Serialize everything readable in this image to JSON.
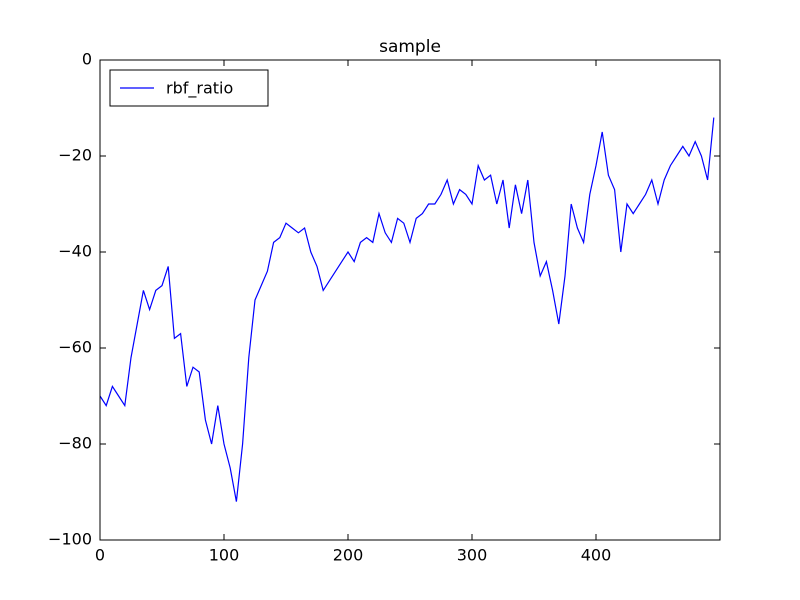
{
  "chart_data": {
    "type": "line",
    "title": "sample",
    "x": [
      0,
      5,
      10,
      15,
      20,
      25,
      30,
      35,
      40,
      45,
      50,
      55,
      60,
      65,
      70,
      75,
      80,
      85,
      90,
      95,
      100,
      105,
      110,
      115,
      120,
      125,
      130,
      135,
      140,
      145,
      150,
      155,
      160,
      165,
      170,
      175,
      180,
      185,
      190,
      195,
      200,
      205,
      210,
      215,
      220,
      225,
      230,
      235,
      240,
      245,
      250,
      255,
      260,
      265,
      270,
      275,
      280,
      285,
      290,
      295,
      300,
      305,
      310,
      315,
      320,
      325,
      330,
      335,
      340,
      345,
      350,
      355,
      360,
      365,
      370,
      375,
      380,
      385,
      390,
      395,
      400,
      405,
      410,
      415,
      420,
      425,
      430,
      435,
      440,
      445,
      450,
      455,
      460,
      465,
      470,
      475,
      480,
      485,
      490,
      495
    ],
    "series": [
      {
        "name": "rbf_ratio",
        "color": "#0000ff",
        "values": [
          -70,
          -72,
          -68,
          -70,
          -72,
          -62,
          -55,
          -48,
          -52,
          -48,
          -47,
          -43,
          -58,
          -57,
          -68,
          -64,
          -65,
          -75,
          -80,
          -72,
          -80,
          -85,
          -92,
          -80,
          -62,
          -50,
          -47,
          -44,
          -38,
          -37,
          -34,
          -35,
          -36,
          -35,
          -40,
          -43,
          -48,
          -46,
          -44,
          -42,
          -40,
          -42,
          -38,
          -37,
          -38,
          -32,
          -36,
          -38,
          -33,
          -34,
          -38,
          -33,
          -32,
          -30,
          -30,
          -28,
          -25,
          -30,
          -27,
          -28,
          -30,
          -22,
          -25,
          -24,
          -30,
          -25,
          -35,
          -26,
          -32,
          -25,
          -38,
          -45,
          -42,
          -48,
          -55,
          -45,
          -30,
          -35,
          -38,
          -28,
          -22,
          -15,
          -24,
          -27,
          -40,
          -30,
          -32,
          -30,
          -28,
          -25,
          -30,
          -25,
          -22,
          -20,
          -18,
          -20,
          -17,
          -20,
          -25,
          -12
        ]
      }
    ],
    "xlim": [
      0,
      500
    ],
    "xticks": [
      0,
      100,
      200,
      300,
      400
    ],
    "ylim": [
      -100,
      0
    ],
    "yticks": [
      {
        "value": -100,
        "label": "−100"
      },
      {
        "value": -80,
        "label": "−80"
      },
      {
        "value": -60,
        "label": "−60"
      },
      {
        "value": -40,
        "label": "−40"
      },
      {
        "value": -20,
        "label": "−20"
      },
      0
    ],
    "legend": "upper left"
  }
}
